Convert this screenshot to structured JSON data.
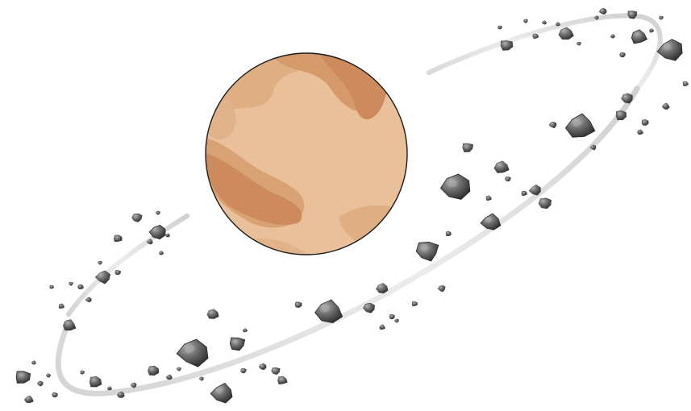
{
  "scene": {
    "subject": "planet-with-asteroid-ring",
    "colors": {
      "background": "#ffffff",
      "planet_base": "#eac09a",
      "planet_light": "#f0c8a2",
      "planet_mid": "#dfae82",
      "planet_dark": "#cd8a5c",
      "planet_outline": "#1a1a1a",
      "ring_light": "#f4f4f4",
      "ring_dark": "#c9c9c9",
      "rock_light": "#9a9a9a",
      "rock_mid": "#5e5e5e",
      "rock_dark": "#2f2f2f"
    }
  }
}
